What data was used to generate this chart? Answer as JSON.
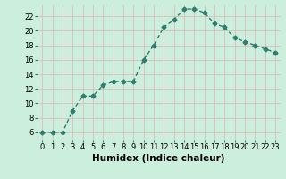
{
  "x": [
    0,
    1,
    2,
    3,
    4,
    5,
    6,
    7,
    8,
    9,
    10,
    11,
    12,
    13,
    14,
    15,
    16,
    17,
    18,
    19,
    20,
    21,
    22,
    23
  ],
  "y": [
    6,
    6,
    6,
    9,
    11,
    11,
    12.5,
    13,
    13,
    13,
    16,
    18,
    20.5,
    21.5,
    23,
    23,
    22.5,
    21,
    20.5,
    19,
    18.5,
    18,
    17.5,
    17
  ],
  "line_color": "#2e7d6e",
  "marker": "D",
  "marker_size": 2.5,
  "line_width": 1.0,
  "background_color": "#cceedd",
  "grid_color": "#ddbbbb",
  "xlabel": "Humidex (Indice chaleur)",
  "xlim": [
    -0.5,
    23.5
  ],
  "ylim": [
    5,
    23.5
  ],
  "yticks": [
    6,
    8,
    10,
    12,
    14,
    16,
    18,
    20,
    22
  ],
  "xticks": [
    0,
    1,
    2,
    3,
    4,
    5,
    6,
    7,
    8,
    9,
    10,
    11,
    12,
    13,
    14,
    15,
    16,
    17,
    18,
    19,
    20,
    21,
    22,
    23
  ],
  "tick_fontsize": 6,
  "xlabel_fontsize": 7.5
}
